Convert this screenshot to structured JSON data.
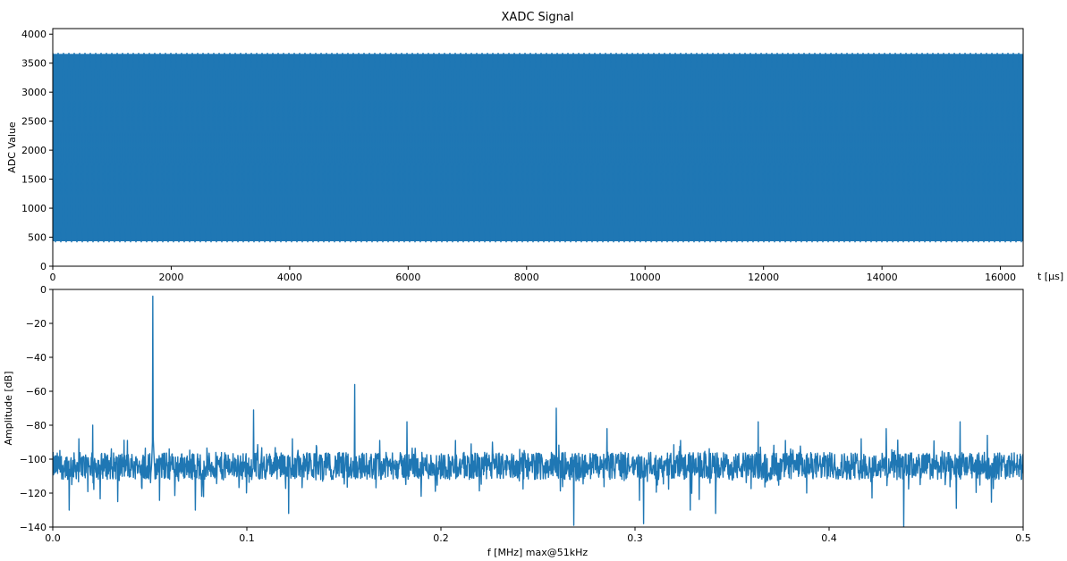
{
  "chart_data": [
    {
      "type": "line",
      "title": "XADC Signal",
      "xlabel": "t [$\\mu s$]",
      "xlabel_display": "t [μs]",
      "ylabel": "ADC Value",
      "xlim": [
        0,
        16384
      ],
      "ylim": [
        0,
        4096
      ],
      "xticks": [
        0,
        2000,
        4000,
        6000,
        8000,
        10000,
        12000,
        14000,
        16000
      ],
      "yticks": [
        0,
        500,
        1000,
        1500,
        2000,
        2500,
        3000,
        3500,
        4000
      ],
      "grid": false,
      "legend": "none",
      "series": [
        {
          "color": "#1f77b4",
          "signal": "dense sinusoid oscillating between min and max",
          "min": 430,
          "max": 3660
        }
      ]
    },
    {
      "type": "line",
      "title": "",
      "xlabel": "f [MHz] max@51kHz",
      "ylabel": "Amplitude [dB]",
      "xlim": [
        0,
        0.5
      ],
      "ylim": [
        -140,
        0
      ],
      "xticks": [
        0.0,
        0.1,
        0.2,
        0.3,
        0.4,
        0.5
      ],
      "yticks": [
        0,
        -20,
        -40,
        -60,
        -80,
        -100,
        -120,
        -140
      ],
      "grid": false,
      "legend": "none",
      "series": [
        {
          "color": "#1f77b4",
          "noise_floor_db": -104,
          "peaks": [
            {
              "f": 0.0135,
              "db": -88
            },
            {
              "f": 0.0205,
              "db": -80
            },
            {
              "f": 0.0385,
              "db": -89
            },
            {
              "f": 0.0515,
              "db": -4
            },
            {
              "f": 0.1035,
              "db": -71
            },
            {
              "f": 0.1235,
              "db": -88
            },
            {
              "f": 0.1555,
              "db": -56
            },
            {
              "f": 0.1685,
              "db": -89
            },
            {
              "f": 0.1825,
              "db": -78
            },
            {
              "f": 0.2075,
              "db": -89
            },
            {
              "f": 0.2155,
              "db": -91
            },
            {
              "f": 0.2265,
              "db": -90
            },
            {
              "f": 0.2595,
              "db": -70
            },
            {
              "f": 0.2855,
              "db": -82
            },
            {
              "f": 0.3235,
              "db": -89
            },
            {
              "f": 0.3635,
              "db": -78
            },
            {
              "f": 0.3775,
              "db": -89
            },
            {
              "f": 0.4165,
              "db": -88
            },
            {
              "f": 0.4295,
              "db": -82
            },
            {
              "f": 0.4675,
              "db": -78
            },
            {
              "f": 0.4815,
              "db": -86
            }
          ],
          "dips": [
            {
              "f": 0.0085,
              "db": -130
            },
            {
              "f": 0.0335,
              "db": -125
            },
            {
              "f": 0.0735,
              "db": -130
            },
            {
              "f": 0.1215,
              "db": -132
            },
            {
              "f": 0.2685,
              "db": -139
            },
            {
              "f": 0.3045,
              "db": -138
            },
            {
              "f": 0.3285,
              "db": -130
            },
            {
              "f": 0.3415,
              "db": -132
            },
            {
              "f": 0.4385,
              "db": -140
            },
            {
              "f": 0.4655,
              "db": -129
            }
          ]
        }
      ]
    }
  ]
}
